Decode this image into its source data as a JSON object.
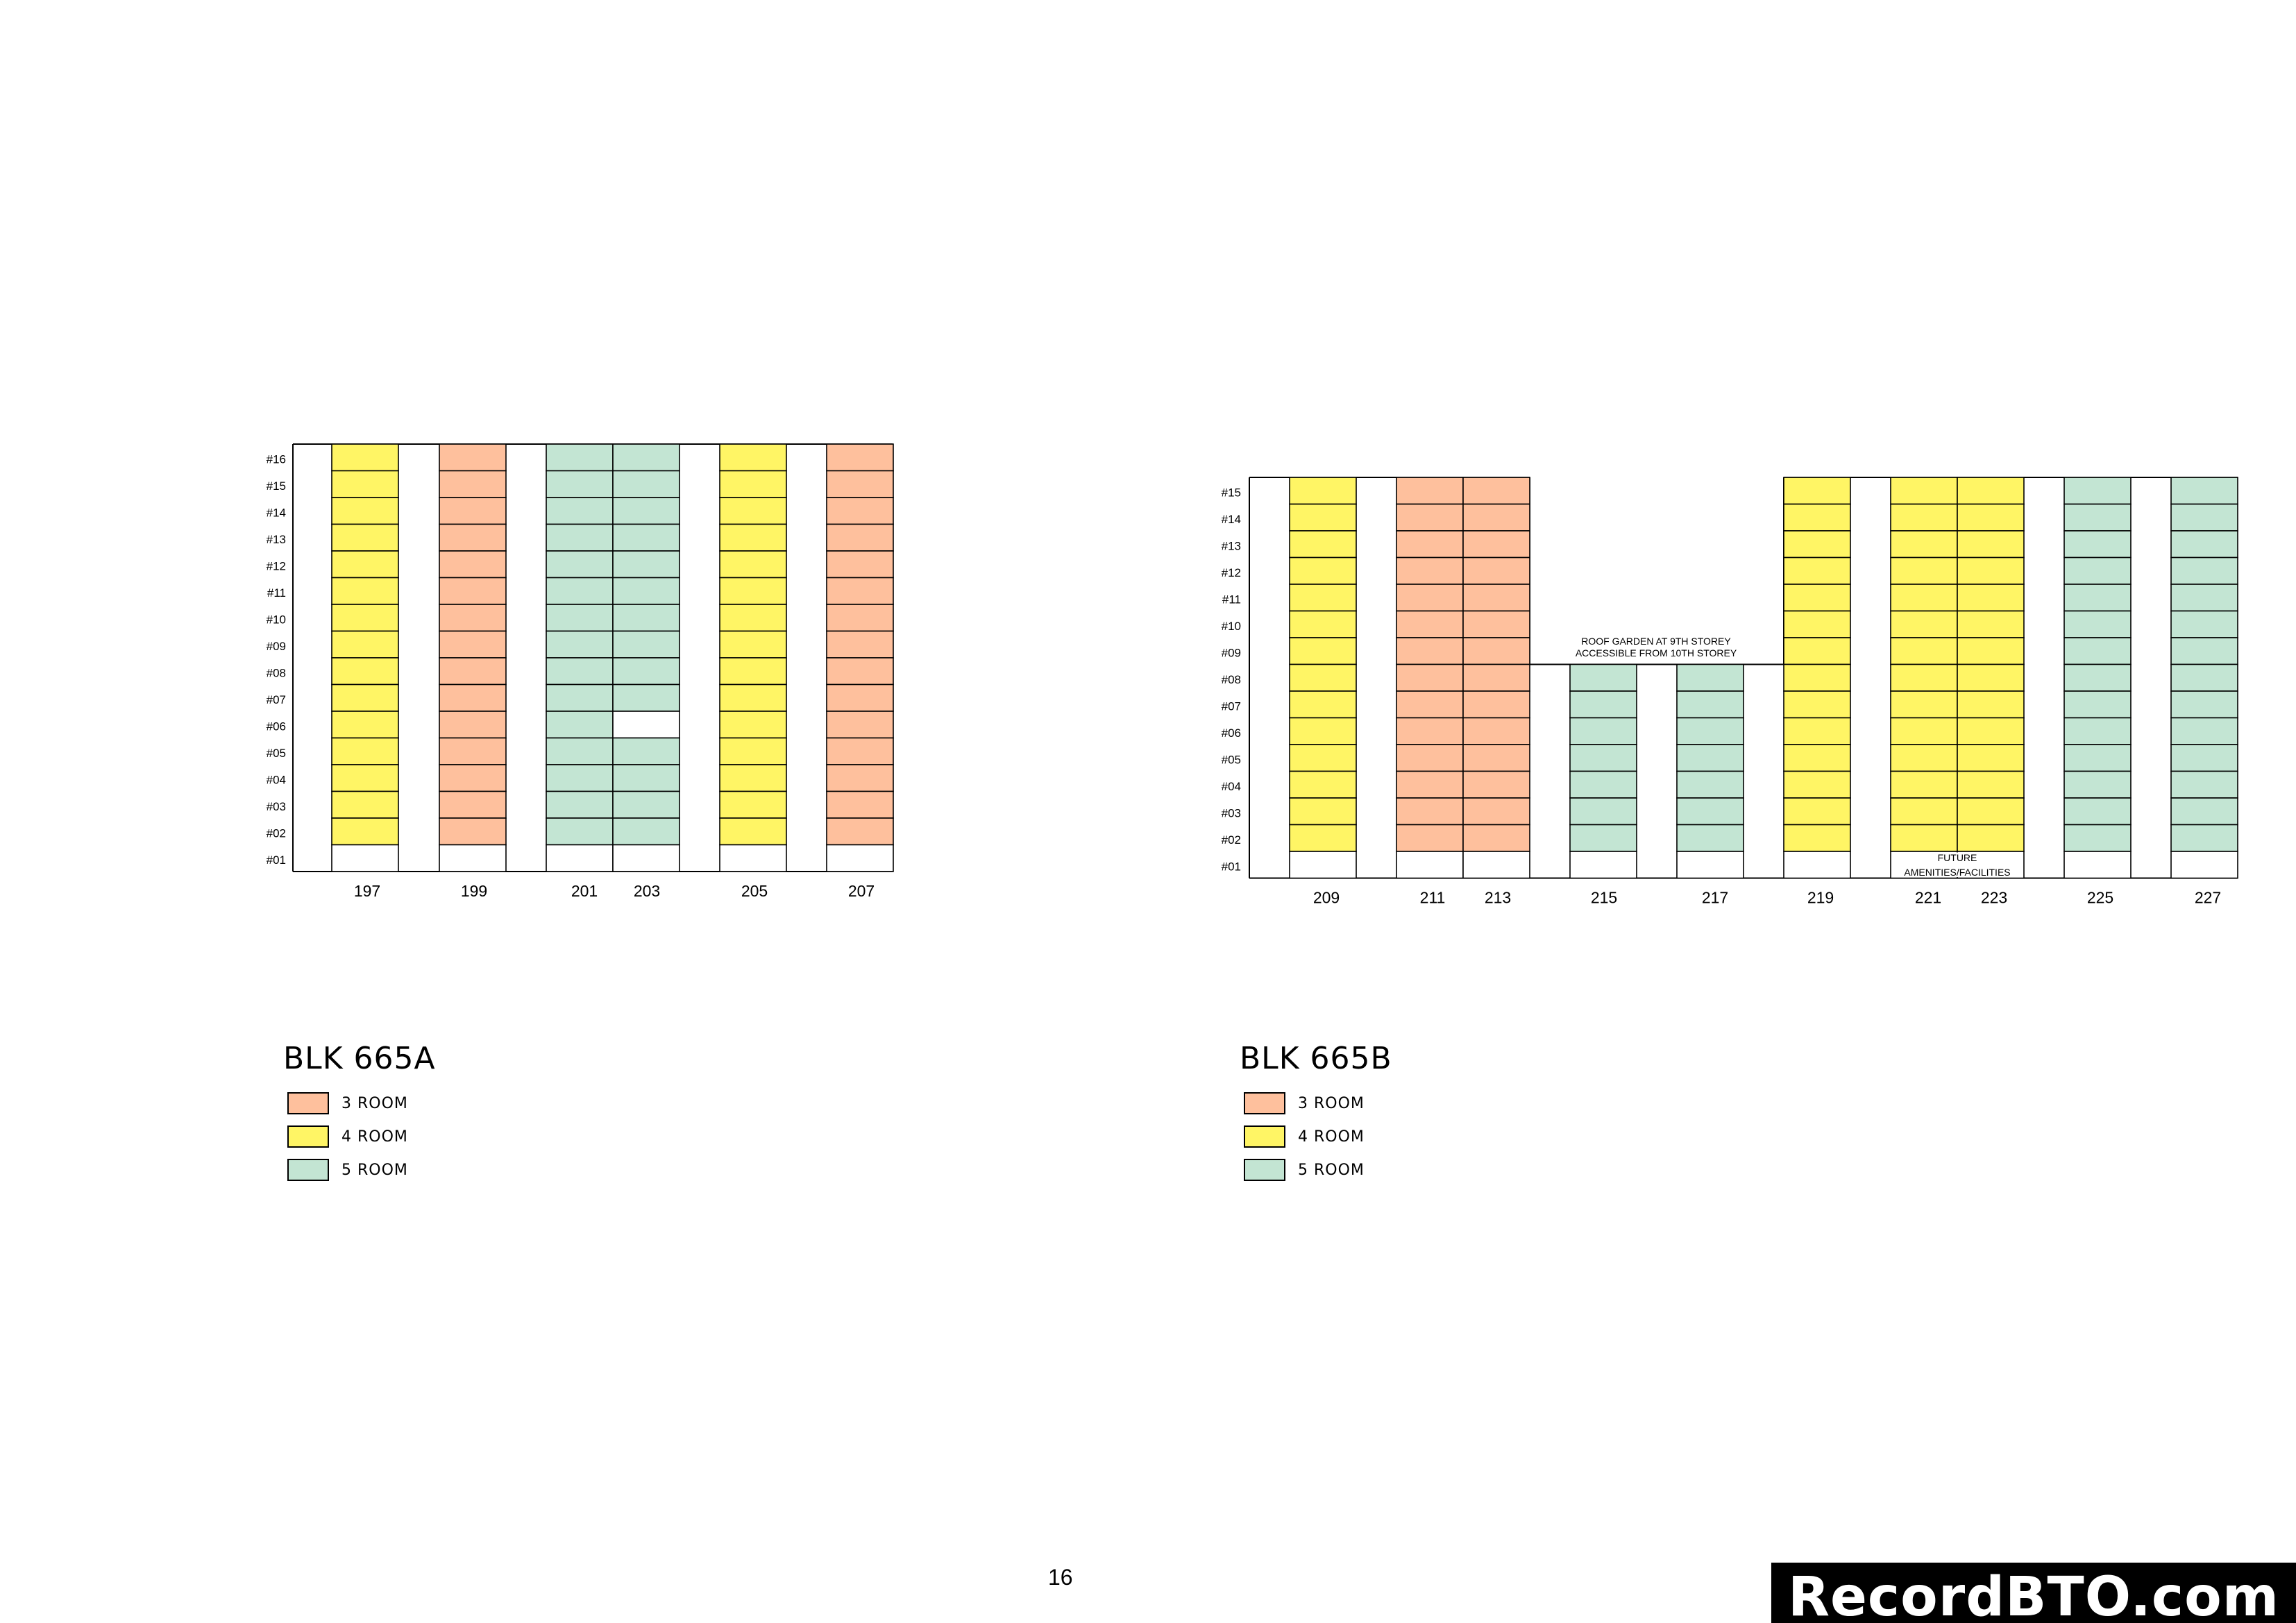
{
  "colors": {
    "room3": "#FEC09D",
    "room4": "#FFF565",
    "room5": "#C3E5D3",
    "empty": "#FFFFFF",
    "line": "#000000"
  },
  "floors_a": [
    "#16",
    "#15",
    "#14",
    "#13",
    "#12",
    "#11",
    "#10",
    "#09",
    "#08",
    "#07",
    "#06",
    "#05",
    "#04",
    "#03",
    "#02",
    "#01"
  ],
  "floors_b": [
    "#15",
    "#14",
    "#13",
    "#12",
    "#11",
    "#10",
    "#09",
    "#08",
    "#07",
    "#06",
    "#05",
    "#04",
    "#03",
    "#02",
    "#01"
  ],
  "block_a": {
    "title": "BLK  665A",
    "columns": [
      {
        "label": "197",
        "type": "room4"
      },
      {
        "label": "199",
        "type": "room3"
      },
      {
        "label": "201",
        "type": "room5"
      },
      {
        "label": "203",
        "type": "room5"
      },
      {
        "label": "205",
        "type": "room4"
      },
      {
        "label": "207",
        "type": "room3"
      }
    ],
    "legend": [
      {
        "type": "room3",
        "label": "3  ROOM"
      },
      {
        "type": "room4",
        "label": "4  ROOM"
      },
      {
        "type": "room5",
        "label": "5  ROOM"
      }
    ]
  },
  "block_b": {
    "title": "BLK  665B",
    "columns": [
      {
        "label": "209",
        "type": "room4"
      },
      {
        "label": "211",
        "type": "room3"
      },
      {
        "label": "213",
        "type": "room3"
      },
      {
        "label": "215",
        "type": "room5"
      },
      {
        "label": "217",
        "type": "room5"
      },
      {
        "label": "219",
        "type": "room4"
      },
      {
        "label": "221",
        "type": "room4"
      },
      {
        "label": "223",
        "type": "room4"
      },
      {
        "label": "225",
        "type": "room5"
      },
      {
        "label": "227",
        "type": "room5"
      }
    ],
    "roof_note_1": "ROOF  GARDEN  AT  9TH  STOREY",
    "roof_note_2": "ACCESSIBLE  FROM  10TH  STOREY",
    "future_note_1": "FUTURE",
    "future_note_2": "AMENITIES/FACILITIES",
    "legend": [
      {
        "type": "room3",
        "label": "3  ROOM"
      },
      {
        "type": "room4",
        "label": "4  ROOM"
      },
      {
        "type": "room5",
        "label": "5  ROOM"
      }
    ]
  },
  "page_number": "16",
  "watermark": "RecordBTO.com"
}
